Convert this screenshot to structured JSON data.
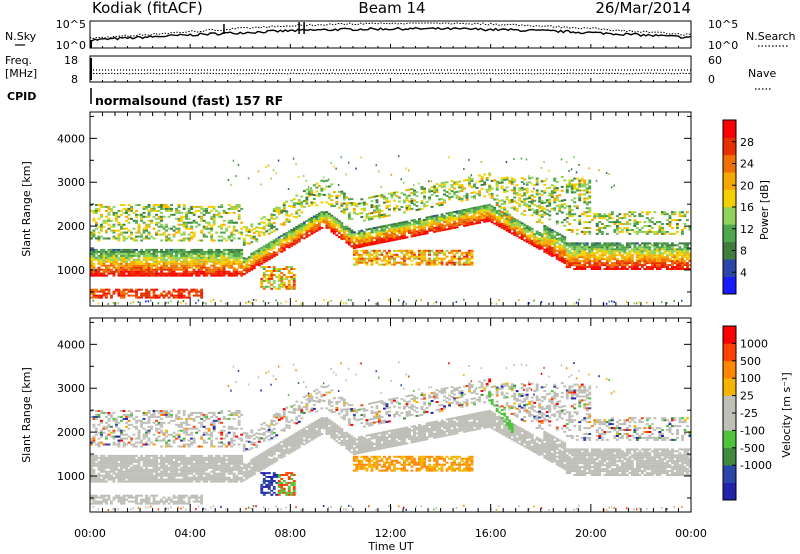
{
  "header": {
    "site": "Kodiak (fitACF)",
    "beam": "Beam 14",
    "date": "26/Mar/2014"
  },
  "top_panels": {
    "nsky_label": "N.Sky",
    "nsky_ticks": [
      "10^5",
      "10^0"
    ],
    "nsearch_label": "N.Search",
    "nsearch_ticks": [
      "10^5",
      "10^0"
    ],
    "freq_label": [
      "Freq.",
      "[MHz]"
    ],
    "freq_ticks": [
      "18",
      "8"
    ],
    "nave_label": "Nave",
    "nave_ticks": [
      "60",
      "0"
    ],
    "cpid_label": "CPID",
    "cpid_value": "normalsound (fast) 157 RF"
  },
  "colors": {
    "power": [
      "#1a1aff",
      "#2a46a8",
      "#3f7d3f",
      "#4ea64e",
      "#8fd35a",
      "#f5d000",
      "#f5a800",
      "#f07000",
      "#e63000",
      "#ff0000"
    ],
    "velocity": [
      "#2222aa",
      "#2a46a8",
      "#3f8a3f",
      "#4fc43a",
      "#c0c0b8",
      "#c0c0b8",
      "#f5b400",
      "#ff8800",
      "#ff4400",
      "#ff0000"
    ],
    "ground_scatter": "#bfbfb8"
  },
  "chart_data": [
    {
      "type": "heatmap",
      "name": "power",
      "xlabel": "",
      "ylabel": "Slant Range [km]",
      "x_ticks": [
        "00:00",
        "04:00",
        "08:00",
        "12:00",
        "16:00",
        "20:00",
        "00:00"
      ],
      "xlim_hours": [
        0,
        24
      ],
      "y_ticks": [
        1000,
        2000,
        3000,
        4000
      ],
      "ylim": [
        180,
        4600
      ],
      "colorbar": {
        "label": "Power [dB]",
        "ticks": [
          4,
          8,
          12,
          16,
          20,
          24,
          28
        ],
        "range": [
          0,
          32
        ]
      }
    },
    {
      "type": "heatmap",
      "name": "velocity",
      "xlabel": "Time UT",
      "ylabel": "Slant Range [km]",
      "x_ticks": [
        "00:00",
        "04:00",
        "08:00",
        "12:00",
        "16:00",
        "20:00",
        "00:00"
      ],
      "xlim_hours": [
        0,
        24
      ],
      "y_ticks": [
        1000,
        2000,
        3000,
        4000
      ],
      "ylim": [
        180,
        4600
      ],
      "colorbar": {
        "label": "Velocity [m s⁻¹]",
        "ticks": [
          1000,
          500,
          100,
          25,
          -25,
          -100,
          -500,
          -1000
        ]
      }
    }
  ]
}
